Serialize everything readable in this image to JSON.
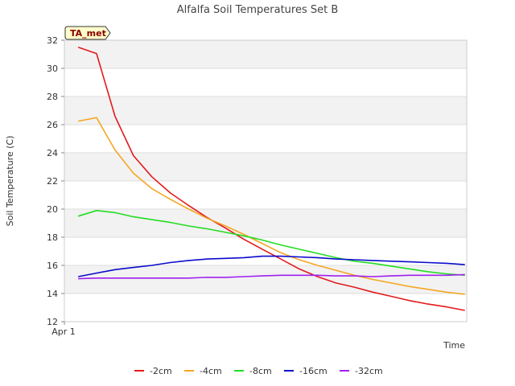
{
  "chart_data": {
    "type": "line",
    "title": "Alfalfa Soil Temperatures Set B",
    "xlabel": "Time",
    "ylabel": "Soil Temperature (C)",
    "ylim": [
      12,
      32
    ],
    "yticks": [
      "12",
      "14",
      "16",
      "18",
      "20",
      "22",
      "24",
      "26",
      "28",
      "30",
      "32"
    ],
    "xtick_label": "Apr 1",
    "x": [
      0,
      1,
      2,
      3,
      4,
      5,
      6,
      7,
      8,
      9,
      10,
      11,
      12,
      13,
      14,
      15,
      16,
      17,
      18,
      19,
      20,
      21
    ],
    "x_range": [
      -0.75,
      21.1
    ],
    "grid": true,
    "legend_position": "bottom",
    "badge": "TA_met",
    "series": [
      {
        "name": "-2cm",
        "color": "#e31a1c",
        "values": [
          31.5,
          31.05,
          26.6,
          23.8,
          22.3,
          21.15,
          20.25,
          19.4,
          18.65,
          17.85,
          17.15,
          16.45,
          15.75,
          15.2,
          14.75,
          14.45,
          14.1,
          13.8,
          13.5,
          13.25,
          13.05,
          12.8
        ]
      },
      {
        "name": "-4cm",
        "color": "#f5a623",
        "values": [
          26.25,
          26.5,
          24.2,
          22.55,
          21.45,
          20.7,
          20.0,
          19.35,
          18.8,
          18.2,
          17.55,
          16.9,
          16.4,
          16.0,
          15.65,
          15.3,
          15.0,
          14.75,
          14.5,
          14.3,
          14.1,
          13.95
        ]
      },
      {
        "name": "-8cm",
        "color": "#22dd22",
        "values": [
          19.5,
          19.9,
          19.75,
          19.45,
          19.25,
          19.05,
          18.8,
          18.6,
          18.35,
          18.1,
          17.8,
          17.45,
          17.15,
          16.85,
          16.55,
          16.3,
          16.15,
          15.95,
          15.75,
          15.55,
          15.4,
          15.3
        ]
      },
      {
        "name": "-16cm",
        "color": "#0a0acc",
        "values": [
          15.2,
          15.45,
          15.7,
          15.85,
          16.0,
          16.2,
          16.35,
          16.45,
          16.5,
          16.55,
          16.65,
          16.65,
          16.6,
          16.55,
          16.45,
          16.4,
          16.35,
          16.3,
          16.25,
          16.2,
          16.15,
          16.05
        ]
      },
      {
        "name": "-32cm",
        "color": "#a020f0",
        "values": [
          15.05,
          15.1,
          15.1,
          15.1,
          15.1,
          15.1,
          15.1,
          15.15,
          15.15,
          15.2,
          15.25,
          15.3,
          15.3,
          15.3,
          15.25,
          15.25,
          15.2,
          15.25,
          15.3,
          15.3,
          15.3,
          15.35
        ]
      }
    ]
  }
}
